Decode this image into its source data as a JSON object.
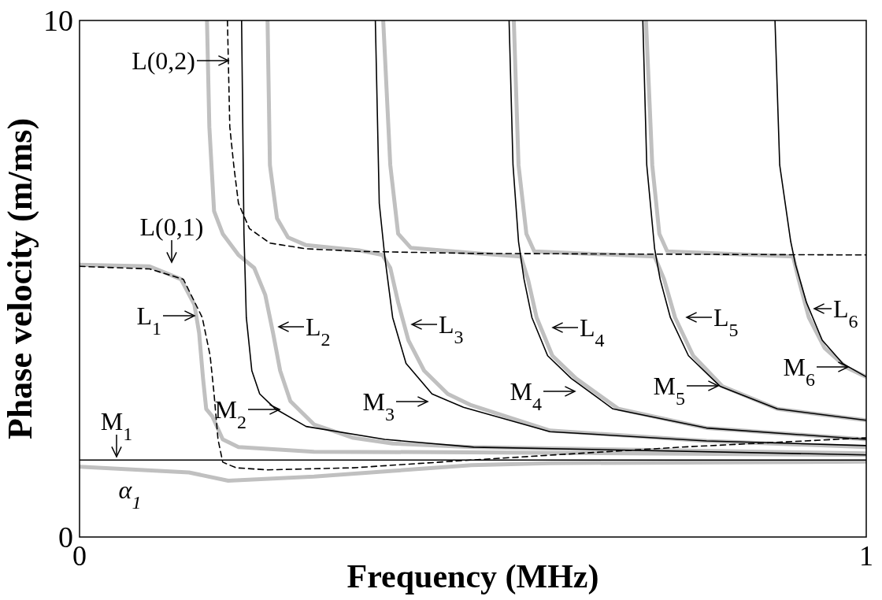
{
  "chart_data": {
    "type": "line",
    "xlabel": "Frequency (MHz)",
    "ylabel": "Phase velocity (m/ms)",
    "xlim": [
      0,
      1
    ],
    "ylim": [
      0,
      10
    ],
    "xticks": [
      0,
      1
    ],
    "yticks": [
      0,
      10
    ],
    "series": [
      {
        "color": "#c0c0c0",
        "x": [
          0,
          0.139,
          0.189,
          0.298,
          0.398,
          0.498,
          0.598,
          1.0
        ],
        "values": [
          1.36,
          1.25,
          1.09,
          1.17,
          1.28,
          1.39,
          1.43,
          1.46
        ]
      },
      {
        "color": "#c0c0c0",
        "x": [
          0,
          0.089,
          0.129,
          0.146,
          0.152,
          0.157,
          0.161,
          0.169,
          0.182,
          0.202,
          0.298,
          0.498,
          1.0
        ],
        "values": [
          5.27,
          5.24,
          4.99,
          4.5,
          3.95,
          3.07,
          2.48,
          2.33,
          1.89,
          1.74,
          1.65,
          1.64,
          1.59
        ]
      },
      {
        "color": "#c0c0c0",
        "x": [
          0.162,
          0.165,
          0.171,
          0.182,
          0.202,
          0.222,
          0.236,
          0.246,
          0.255,
          0.268,
          0.298,
          0.348,
          0.398,
          0.498,
          1.0
        ],
        "values": [
          10,
          7.94,
          6.31,
          5.87,
          5.46,
          5.21,
          4.69,
          3.95,
          3.22,
          2.63,
          2.18,
          1.92,
          1.81,
          1.74,
          1.62
        ]
      },
      {
        "color": "#c0c0c0",
        "x": [
          0.239,
          0.242,
          0.251,
          0.265,
          0.288,
          0.355,
          0.385,
          0.395,
          0.405,
          0.418,
          0.438,
          0.468,
          0.498,
          0.598,
          0.797,
          1.0
        ],
        "values": [
          10,
          7.2,
          6.17,
          5.8,
          5.65,
          5.55,
          5.46,
          5.21,
          4.54,
          3.81,
          3.22,
          2.77,
          2.55,
          2.06,
          1.86,
          1.74
        ]
      },
      {
        "color": "#c0c0c0",
        "x": [
          0.386,
          0.395,
          0.405,
          0.421,
          0.505,
          0.561,
          0.57,
          0.581,
          0.601,
          0.631,
          0.685,
          0.797,
          1.0
        ],
        "values": [
          10,
          7.2,
          5.87,
          5.6,
          5.49,
          5.43,
          4.99,
          4.25,
          3.51,
          3.07,
          2.48,
          2.11,
          1.89
        ]
      },
      {
        "color": "#c0c0c0",
        "x": [
          0.552,
          0.558,
          0.568,
          0.578,
          0.731,
          0.743,
          0.757,
          0.78,
          0.817,
          0.887,
          1.0
        ],
        "values": [
          10,
          7.2,
          5.87,
          5.53,
          5.43,
          4.99,
          4.25,
          3.51,
          2.92,
          2.48,
          2.26
        ]
      },
      {
        "color": "#c0c0c0",
        "x": [
          0.72,
          0.728,
          0.737,
          0.747,
          0.907,
          0.914,
          0.927,
          0.947,
          0.974,
          1.0
        ],
        "values": [
          10,
          7.2,
          5.87,
          5.53,
          5.43,
          4.99,
          4.25,
          3.66,
          3.29,
          3.1
        ]
      },
      {
        "color": "#000000",
        "x": [
          0,
          1
        ],
        "values": [
          1.49,
          1.49
        ]
      },
      {
        "color": "#000000",
        "line_style": "dashed",
        "x": [
          0,
          0.089,
          0.132,
          0.156,
          0.166,
          0.171,
          0.176,
          0.182,
          0.199,
          0.239,
          0.348,
          0.498,
          0.764,
          1.0
        ],
        "values": [
          5.24,
          5.19,
          4.99,
          4.25,
          3.51,
          2.77,
          1.89,
          1.45,
          1.34,
          1.3,
          1.34,
          1.49,
          1.74,
          1.92
        ]
      },
      {
        "color": "#000000",
        "line_style": "dashed",
        "x": [
          0.188,
          0.191,
          0.196,
          0.202,
          0.216,
          0.242,
          0.288,
          0.355,
          0.501,
          1.0
        ],
        "values": [
          10,
          7.94,
          7.2,
          6.46,
          5.97,
          5.69,
          5.58,
          5.53,
          5.49,
          5.46
        ]
      },
      {
        "color": "#000000",
        "x": [
          0.206,
          0.209,
          0.212,
          0.219,
          0.229,
          0.249,
          0.288,
          0.388,
          0.501,
          1.0
        ],
        "values": [
          10,
          5.87,
          4.25,
          3.22,
          2.77,
          2.48,
          2.14,
          1.89,
          1.74,
          1.59
        ]
      },
      {
        "color": "#000000",
        "x": [
          0.376,
          0.381,
          0.388,
          0.398,
          0.415,
          0.448,
          0.488,
          0.598,
          0.797,
          1.0
        ],
        "values": [
          10,
          6.46,
          5.43,
          4.25,
          3.36,
          2.77,
          2.51,
          2.04,
          1.86,
          1.77
        ]
      },
      {
        "color": "#000000",
        "x": [
          0.546,
          0.551,
          0.558,
          0.565,
          0.575,
          0.595,
          0.625,
          0.678,
          0.797,
          1.0
        ],
        "values": [
          10,
          7.2,
          5.72,
          4.99,
          4.25,
          3.51,
          3.07,
          2.48,
          2.11,
          1.89
        ]
      },
      {
        "color": "#000000",
        "x": [
          0.716,
          0.721,
          0.731,
          0.738,
          0.751,
          0.774,
          0.814,
          0.887,
          1.0
        ],
        "values": [
          10,
          7.2,
          5.58,
          4.99,
          4.25,
          3.51,
          2.92,
          2.48,
          2.26
        ]
      },
      {
        "color": "#000000",
        "x": [
          0.884,
          0.89,
          0.904,
          0.91,
          0.924,
          0.944,
          0.97,
          1.0
        ],
        "values": [
          10,
          7.2,
          5.72,
          5.28,
          4.54,
          3.81,
          3.36,
          3.1
        ]
      }
    ],
    "annotations": [
      "L(0,2)",
      "L(0,1)",
      "L$_{1}$",
      "L$_{2}$",
      "L$_{3}$",
      "L$_{4}$",
      "L$_{5}$",
      "L$_{6}$",
      "M$_{1}$",
      "M$_{2}$",
      "M$_{3}$",
      "M$_{4}$",
      "M$_{5}$",
      "M$_{6}$",
      "α$_{1}$"
    ]
  }
}
